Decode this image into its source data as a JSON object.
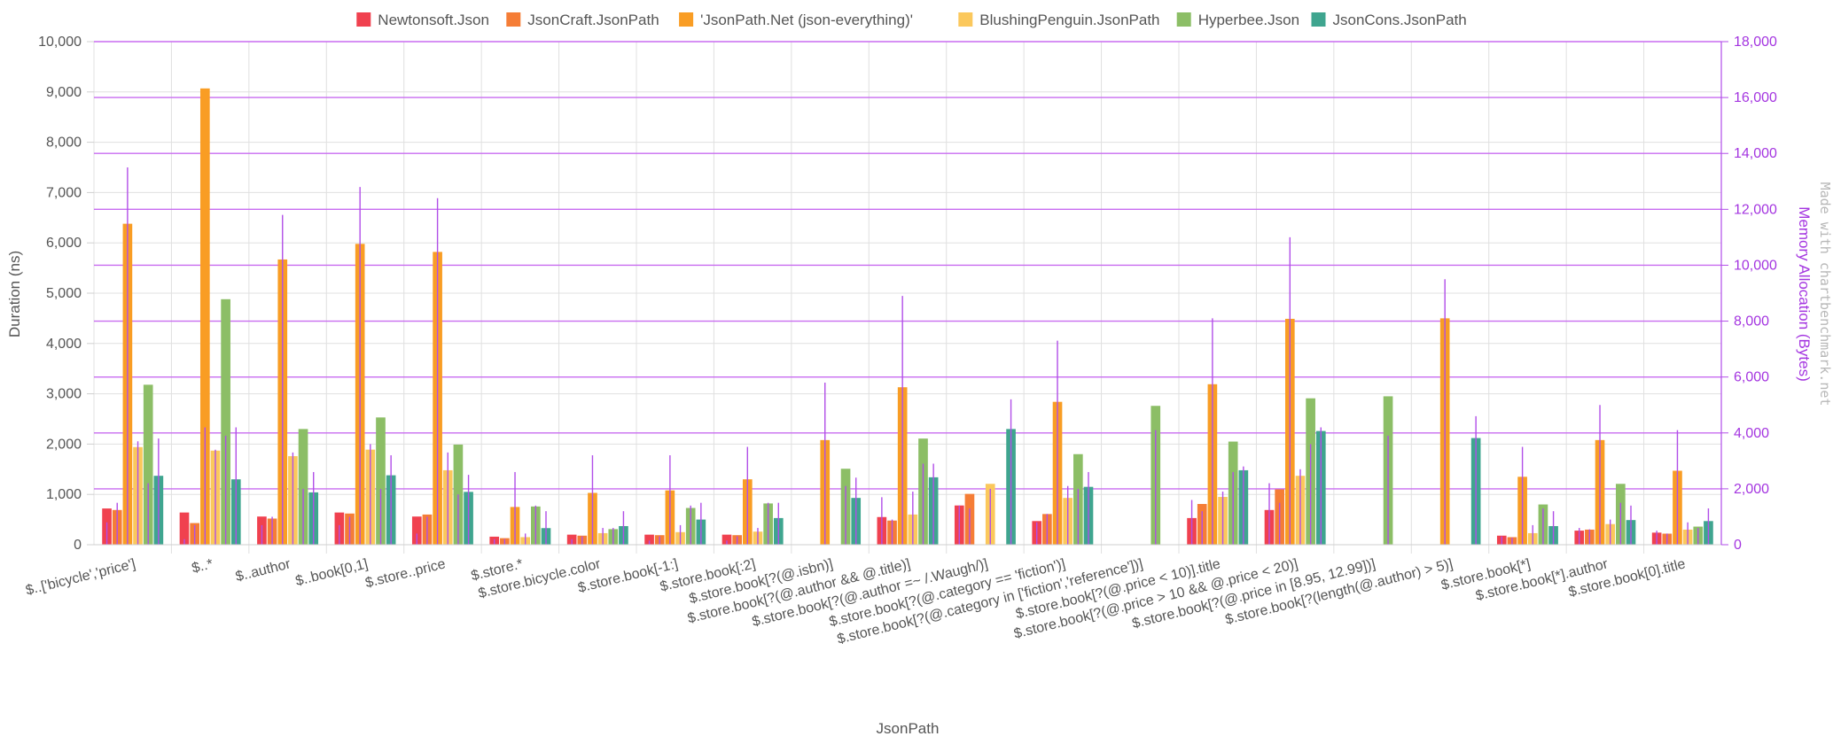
{
  "chart_data": {
    "type": "bar",
    "categories": [
      "$..['bicycle','price']",
      "$..*",
      "$..author",
      "$..book[0,1]",
      "$.store..price",
      "$.store.*",
      "$.store.bicycle.color",
      "$.store.book[-1:]",
      "$.store.book[:2]",
      "$.store.book[?(@.isbn)]",
      "$.store.book[?(@.author && @.title)]",
      "$.store.book[?(@.author =~ /.Waugh/)]",
      "$.store.book[?(@.category == 'fiction')]",
      "$.store.book[?(@.category in ['fiction','reference'])]",
      "$.store.book[?(@.price < 10)].title",
      "$.store.book[?(@.price > 10 && @.price < 20)]",
      "$.store.book[?(@.price in [8.95, 12.99])]",
      "$.store.book[?(length(@.author) > 5)]",
      "$.store.book[*]",
      "$.store.book[*].author",
      "$.store.book[0].title"
    ],
    "series": [
      {
        "name": "Newtonsoft.Json",
        "color": "#f0414f",
        "values": [
          720,
          640,
          560,
          640,
          560,
          160,
          200,
          200,
          200,
          0,
          550,
          780,
          470,
          0,
          530,
          690,
          0,
          0,
          180,
          280,
          240
        ],
        "memory": [
          800,
          200,
          700,
          700,
          400,
          200,
          200,
          150,
          150,
          0,
          1700,
          1400,
          800,
          0,
          1600,
          2200,
          0,
          0,
          300,
          600,
          500
        ]
      },
      {
        "name": "JsonCraft.JsonPath",
        "color": "#f57d36",
        "values": [
          690,
          430,
          520,
          620,
          600,
          130,
          180,
          190,
          190,
          0,
          480,
          1010,
          610,
          0,
          810,
          1100,
          0,
          0,
          150,
          300,
          220
        ],
        "memory": [
          1500,
          700,
          1000,
          1000,
          1000,
          200,
          300,
          300,
          300,
          0,
          900,
          1300,
          1100,
          0,
          1200,
          1500,
          0,
          0,
          250,
          550,
          400
        ]
      },
      {
        "name": "'JsonPath.Net (json-everything)'",
        "color": "#f99d24",
        "values": [
          6380,
          9070,
          5670,
          5980,
          5820,
          750,
          1030,
          1080,
          1300,
          2080,
          3130,
          0,
          2840,
          0,
          3190,
          4490,
          0,
          4500,
          1350,
          2080,
          1470
        ],
        "memory": [
          13500,
          4200,
          11800,
          12800,
          12400,
          2600,
          3200,
          3200,
          3500,
          5800,
          8900,
          0,
          7300,
          0,
          8100,
          11000,
          0,
          9500,
          3500,
          5000,
          4100
        ]
      },
      {
        "name": "BlushingPenguin.JsonPath",
        "color": "#fbc85c",
        "values": [
          1940,
          1870,
          1760,
          1890,
          1480,
          150,
          230,
          250,
          260,
          0,
          600,
          1210,
          930,
          0,
          950,
          1370,
          0,
          0,
          230,
          410,
          300
        ],
        "memory": [
          3700,
          3400,
          3300,
          3600,
          3300,
          400,
          600,
          700,
          600,
          0,
          1900,
          2000,
          2100,
          0,
          1900,
          2700,
          0,
          0,
          700,
          900,
          800
        ]
      },
      {
        "name": "Hyperbee.Json",
        "color": "#8cbe66",
        "values": [
          3180,
          4880,
          2300,
          2530,
          1990,
          760,
          310,
          730,
          820,
          1510,
          2110,
          0,
          1800,
          2760,
          2050,
          2910,
          2950,
          0,
          800,
          1210,
          360
        ],
        "memory": [
          2200,
          3900,
          2000,
          2000,
          1800,
          1400,
          600,
          1400,
          1500,
          2100,
          2900,
          0,
          2000,
          4100,
          2600,
          3600,
          3900,
          0,
          1300,
          1500,
          600
        ]
      },
      {
        "name": "JsonCons.JsonPath",
        "color": "#3fa58f",
        "values": [
          1370,
          1300,
          1040,
          1380,
          1050,
          330,
          370,
          500,
          530,
          930,
          1340,
          2300,
          1150,
          0,
          1480,
          2260,
          0,
          2120,
          370,
          490,
          470
        ],
        "memory": [
          3800,
          4200,
          2600,
          3200,
          2500,
          1200,
          1200,
          1500,
          1500,
          2400,
          2900,
          5200,
          2600,
          0,
          2800,
          4200,
          0,
          4600,
          1200,
          1400,
          1300
        ]
      }
    ],
    "xlabel": "JsonPath",
    "ylabel": "Duration (ns)",
    "y2label": "Memory Allocation (Bytes)",
    "ylim": [
      0,
      10000
    ],
    "y2lim": [
      0,
      18000
    ],
    "yticks": [
      "0",
      "1,000",
      "2,000",
      "3,000",
      "4,000",
      "5,000",
      "6,000",
      "7,000",
      "8,000",
      "9,000",
      "10,000"
    ],
    "y2ticks": [
      "0",
      "2,000",
      "4,000",
      "6,000",
      "8,000",
      "10,000",
      "12,000",
      "14,000",
      "16,000",
      "18,000"
    ],
    "grid": true,
    "legend_position": "top-center",
    "memory_marker_color": "#b14ee8",
    "watermark": "Made with chartbenchmark.net"
  }
}
